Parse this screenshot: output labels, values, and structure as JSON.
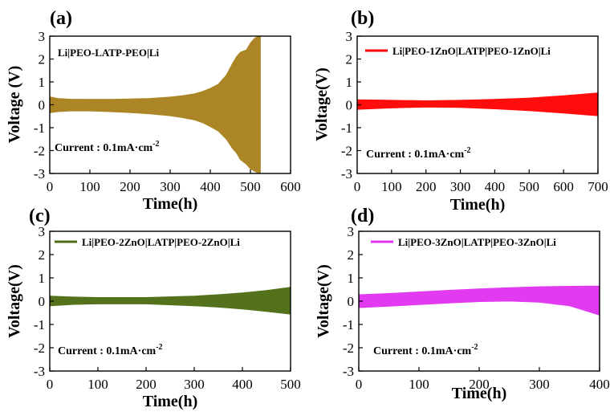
{
  "chart_data": [
    {
      "panel_label": "(a)",
      "type": "line",
      "xlabel": "Time(h)",
      "ylabel": "Voltage (V)",
      "xlim": [
        0,
        600
      ],
      "ylim": [
        -3,
        3
      ],
      "xticks": [
        0,
        100,
        200,
        300,
        400,
        500,
        600
      ],
      "yticks": [
        -3,
        -2,
        -1,
        0,
        1,
        2,
        3
      ],
      "legend_style": "text",
      "series": [
        {
          "name": "Li|PEO-LATP-PEO|Li",
          "color": "#A8801A",
          "envelope": {
            "x": [
              0,
              20,
              50,
              100,
              150,
              200,
              250,
              300,
              330,
              360,
              380,
              400,
              420,
              440,
              455,
              465,
              475,
              490,
              500,
              510,
              520,
              525
            ],
            "upper": [
              0.35,
              0.28,
              0.25,
              0.24,
              0.24,
              0.26,
              0.28,
              0.34,
              0.4,
              0.48,
              0.58,
              0.72,
              0.9,
              1.3,
              1.8,
              2.1,
              2.3,
              2.4,
              2.7,
              2.9,
              3.0,
              3.0
            ],
            "lower": [
              -0.35,
              -0.3,
              -0.27,
              -0.27,
              -0.3,
              -0.34,
              -0.4,
              -0.48,
              -0.56,
              -0.66,
              -0.78,
              -0.95,
              -1.15,
              -1.5,
              -1.9,
              -2.1,
              -2.4,
              -2.6,
              -2.8,
              -2.9,
              -3.0,
              -3.0
            ]
          }
        }
      ],
      "annotation": "Current : 0.1mA·cm-2"
    },
    {
      "panel_label": "(b)",
      "type": "line",
      "xlabel": "Time(h)",
      "ylabel": "Voltage(V)",
      "xlim": [
        0,
        700
      ],
      "ylim": [
        -3,
        3
      ],
      "xticks": [
        0,
        100,
        200,
        300,
        400,
        500,
        600,
        700
      ],
      "yticks": [
        -3,
        -2,
        -1,
        0,
        1,
        2,
        3
      ],
      "legend_style": "line",
      "series": [
        {
          "name": "Li|PEO-1ZnO|LATP|PEO-1ZnO|Li",
          "color": "#FF0000",
          "envelope": {
            "x": [
              0,
              100,
              200,
              300,
              400,
              500,
              600,
              700
            ],
            "upper": [
              0.22,
              0.2,
              0.18,
              0.2,
              0.24,
              0.3,
              0.4,
              0.52
            ],
            "lower": [
              -0.2,
              -0.14,
              -0.1,
              -0.12,
              -0.18,
              -0.26,
              -0.36,
              -0.48
            ]
          }
        }
      ],
      "annotation": "Current : 0.1mA·cm-2"
    },
    {
      "panel_label": "(c)",
      "type": "line",
      "xlabel": "Time(h)",
      "ylabel": "Voltage(V)",
      "xlim": [
        0,
        500
      ],
      "ylim": [
        -3,
        3
      ],
      "xticks": [
        0,
        100,
        200,
        300,
        400,
        500
      ],
      "yticks": [
        -3,
        -2,
        -1,
        0,
        1,
        2,
        3
      ],
      "legend_style": "line",
      "series": [
        {
          "name": "Li|PEO-2ZnO|LATP|PEO-2ZnO|Li",
          "color": "#4A6B10",
          "envelope": {
            "x": [
              0,
              50,
              100,
              200,
              300,
              350,
              400,
              450,
              500
            ],
            "upper": [
              0.22,
              0.18,
              0.16,
              0.16,
              0.22,
              0.28,
              0.36,
              0.46,
              0.6
            ],
            "lower": [
              -0.2,
              -0.14,
              -0.12,
              -0.12,
              -0.2,
              -0.26,
              -0.34,
              -0.44,
              -0.56
            ]
          }
        }
      ],
      "annotation": "Current : 0.1mA·cm-2"
    },
    {
      "panel_label": "(d)",
      "type": "line",
      "xlabel": "Time(h)",
      "ylabel": "Voltage(V)",
      "xlim": [
        0,
        400
      ],
      "ylim": [
        -3,
        3
      ],
      "xticks": [
        0,
        100,
        200,
        300,
        400
      ],
      "yticks": [
        -3,
        -2,
        -1,
        0,
        1,
        2,
        3
      ],
      "legend_style": "line",
      "series": [
        {
          "name": "Li|PEO-3ZnO|LATP|PEO-3ZnO|Li",
          "color": "#E030F0",
          "envelope": {
            "x": [
              0,
              50,
              100,
              150,
              200,
              250,
              300,
              350,
              400
            ],
            "upper": [
              0.28,
              0.33,
              0.4,
              0.47,
              0.53,
              0.58,
              0.62,
              0.64,
              0.65
            ],
            "lower": [
              -0.28,
              -0.22,
              -0.15,
              -0.08,
              -0.02,
              0.0,
              -0.05,
              -0.2,
              -0.6
            ]
          }
        }
      ],
      "annotation": "Current : 0.1mA·cm-2"
    }
  ]
}
